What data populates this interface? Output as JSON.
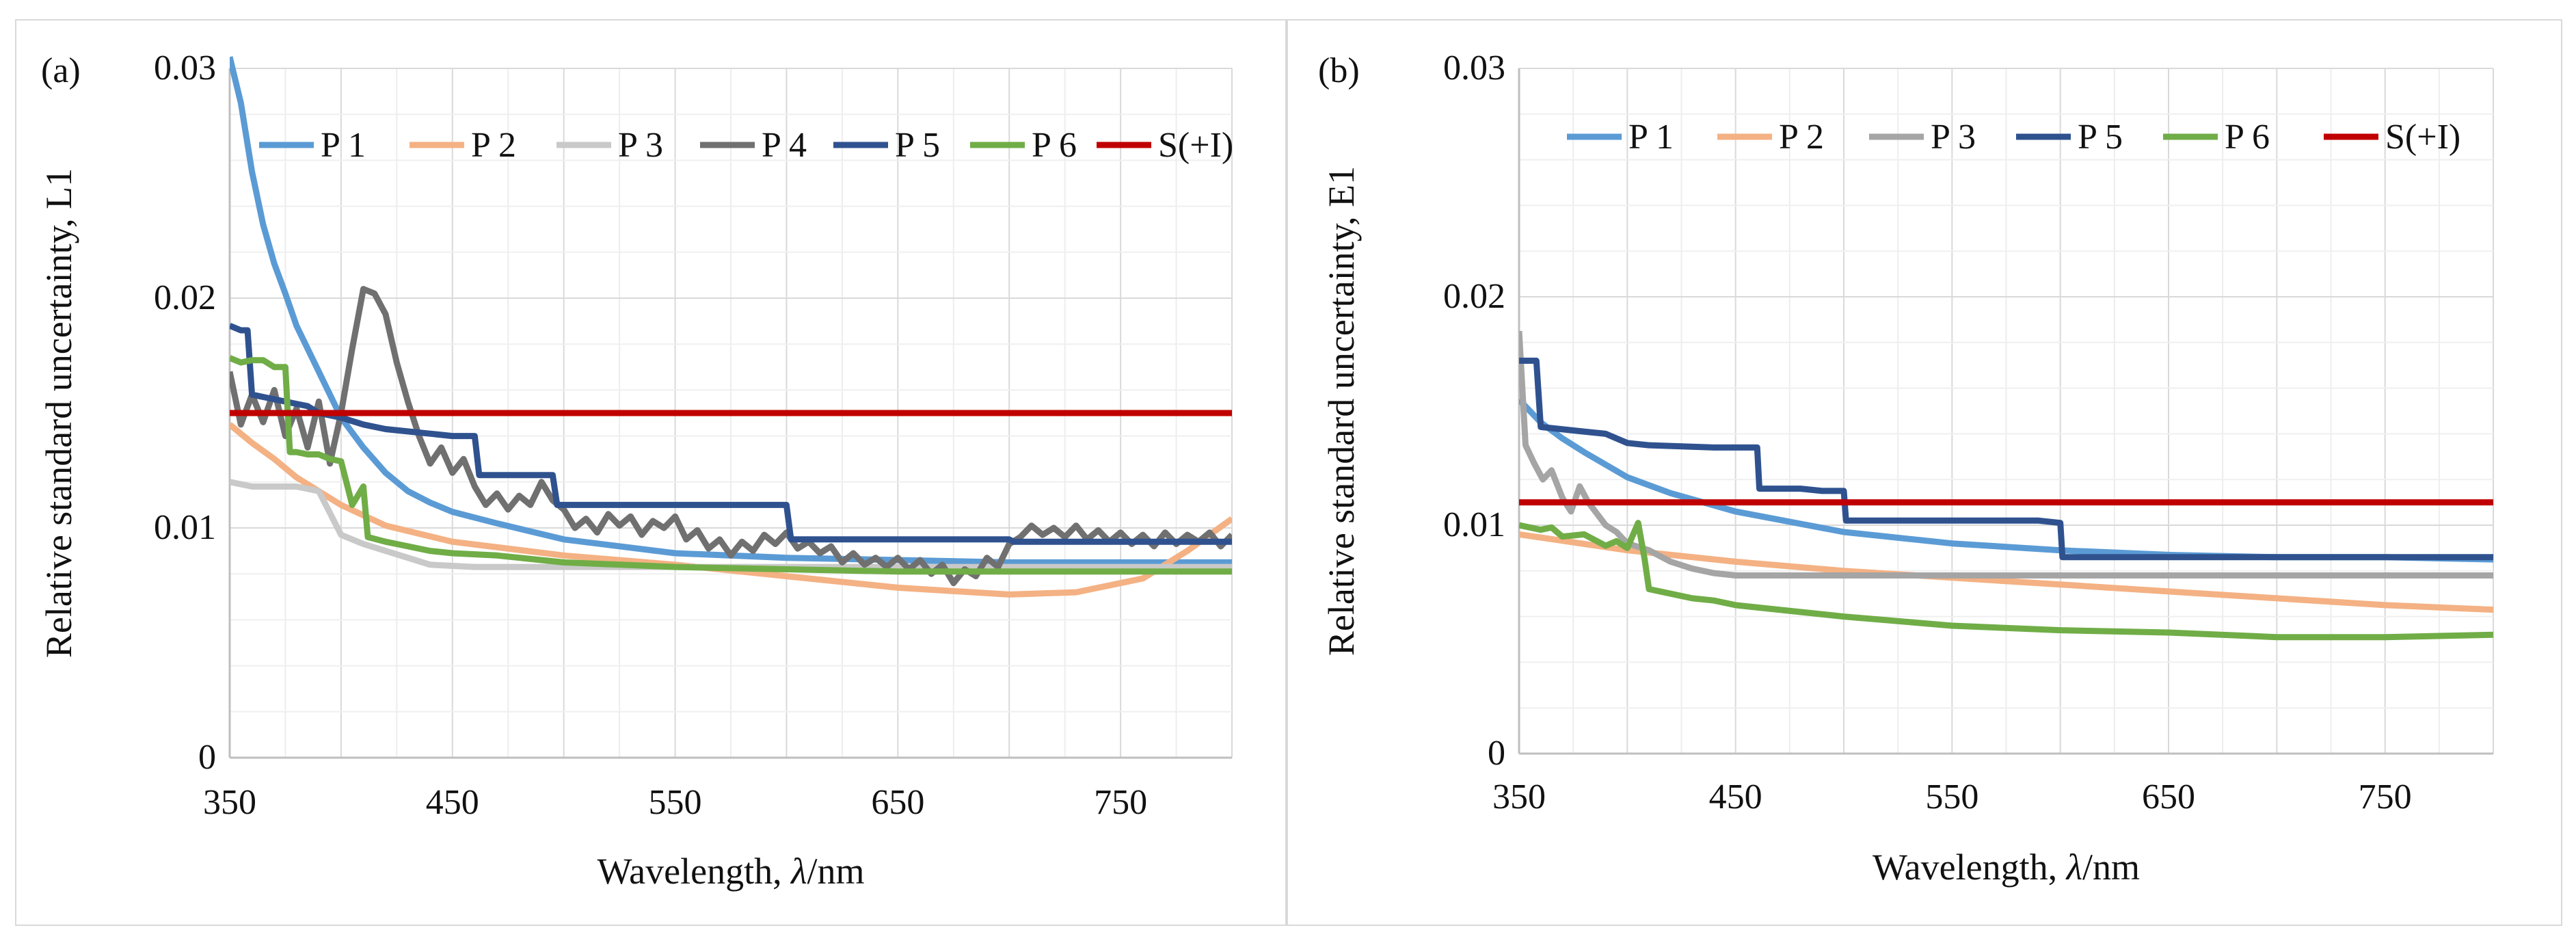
{
  "chart_data": [
    {
      "type": "line",
      "panel_label": "(a)",
      "xlabel_prefix": "Wavelength, ",
      "xlabel_var": "λ",
      "xlabel_suffix": "/nm",
      "ylabel": "Relative standard uncertainty, L1",
      "xlim": [
        350,
        800
      ],
      "ylim": [
        0,
        0.03
      ],
      "xticks": [
        350,
        450,
        550,
        650,
        750
      ],
      "xtick_labels": [
        "350",
        "450",
        "550",
        "650",
        "750"
      ],
      "yticks": [
        0,
        0.01,
        0.02,
        0.03
      ],
      "ytick_labels": [
        "0",
        "0.01",
        "0.02",
        "0.03"
      ],
      "legend_position": "top",
      "series": [
        {
          "name": "P 1",
          "color": "#5b9bd5",
          "x": [
            350,
            355,
            360,
            365,
            370,
            375,
            380,
            390,
            400,
            410,
            420,
            430,
            440,
            450,
            470,
            500,
            550,
            600,
            650,
            700,
            750,
            800
          ],
          "y": [
            0.0305,
            0.0285,
            0.0255,
            0.0232,
            0.0215,
            0.0202,
            0.0188,
            0.0168,
            0.0148,
            0.0135,
            0.0124,
            0.0116,
            0.0111,
            0.0107,
            0.0102,
            0.0095,
            0.0089,
            0.0087,
            0.0086,
            0.0085,
            0.0085,
            0.0085
          ]
        },
        {
          "name": "P 2",
          "color": "#f4b183",
          "x": [
            350,
            360,
            370,
            380,
            400,
            420,
            450,
            500,
            550,
            600,
            650,
            700,
            730,
            760,
            780,
            800
          ],
          "y": [
            0.0145,
            0.0137,
            0.013,
            0.0122,
            0.011,
            0.0101,
            0.0094,
            0.0088,
            0.0084,
            0.0079,
            0.0074,
            0.0071,
            0.0072,
            0.0078,
            0.009,
            0.0104
          ]
        },
        {
          "name": "P 3",
          "color": "#c9c9c9",
          "x": [
            350,
            360,
            380,
            390,
            400,
            410,
            420,
            440,
            460,
            500,
            600,
            700,
            800
          ],
          "y": [
            0.012,
            0.0118,
            0.0118,
            0.0116,
            0.0097,
            0.0093,
            0.009,
            0.0084,
            0.0083,
            0.0083,
            0.0083,
            0.0083,
            0.0083
          ]
        },
        {
          "name": "P 4",
          "color": "#707070",
          "x": [
            350,
            355,
            360,
            365,
            370,
            375,
            380,
            385,
            390,
            395,
            400,
            405,
            410,
            415,
            420,
            425,
            430,
            435,
            440,
            445,
            450,
            455,
            460,
            465,
            470,
            475,
            480,
            485,
            490,
            495,
            500,
            505,
            510,
            515,
            520,
            525,
            530,
            535,
            540,
            545,
            550,
            555,
            560,
            565,
            570,
            575,
            580,
            585,
            590,
            595,
            600,
            605,
            610,
            615,
            620,
            625,
            630,
            635,
            640,
            645,
            650,
            655,
            660,
            665,
            670,
            675,
            680,
            685,
            690,
            695,
            700,
            705,
            710,
            715,
            720,
            725,
            730,
            735,
            740,
            745,
            750,
            755,
            760,
            765,
            770,
            775,
            780,
            785,
            790,
            795,
            800
          ],
          "y": [
            0.0168,
            0.0145,
            0.0158,
            0.0146,
            0.016,
            0.014,
            0.0152,
            0.0135,
            0.0155,
            0.0128,
            0.015,
            0.0178,
            0.0204,
            0.0202,
            0.0193,
            0.0172,
            0.0155,
            0.014,
            0.0128,
            0.0135,
            0.0124,
            0.013,
            0.0118,
            0.011,
            0.0115,
            0.0108,
            0.0114,
            0.011,
            0.012,
            0.0112,
            0.0108,
            0.01,
            0.0104,
            0.0098,
            0.0106,
            0.0101,
            0.0105,
            0.0097,
            0.0103,
            0.01,
            0.0105,
            0.0095,
            0.0099,
            0.0091,
            0.0095,
            0.0088,
            0.0094,
            0.009,
            0.0097,
            0.0093,
            0.0098,
            0.0091,
            0.0094,
            0.0089,
            0.0092,
            0.0085,
            0.0089,
            0.0084,
            0.0087,
            0.0083,
            0.0087,
            0.0082,
            0.0086,
            0.008,
            0.0084,
            0.0076,
            0.0082,
            0.0079,
            0.0087,
            0.0083,
            0.0093,
            0.0096,
            0.0101,
            0.0097,
            0.01,
            0.0096,
            0.0101,
            0.0095,
            0.0099,
            0.0094,
            0.0098,
            0.0093,
            0.0097,
            0.0092,
            0.0098,
            0.0093,
            0.0097,
            0.0094,
            0.0098,
            0.0092,
            0.0097
          ]
        },
        {
          "name": "P 5",
          "color": "#2f528f",
          "x": [
            350,
            355,
            358,
            360,
            380,
            385,
            390,
            400,
            410,
            420,
            430,
            440,
            450,
            460,
            462,
            480,
            490,
            495,
            497,
            500,
            550,
            600,
            602,
            650,
            700,
            702,
            750,
            800
          ],
          "y": [
            0.0188,
            0.0186,
            0.0186,
            0.0158,
            0.0154,
            0.0153,
            0.015,
            0.0148,
            0.0145,
            0.0143,
            0.0142,
            0.0141,
            0.014,
            0.014,
            0.0123,
            0.0123,
            0.0123,
            0.0123,
            0.011,
            0.011,
            0.011,
            0.011,
            0.0095,
            0.0095,
            0.0095,
            0.0094,
            0.0094,
            0.0094
          ]
        },
        {
          "name": "P 6",
          "color": "#70ad47",
          "x": [
            350,
            355,
            360,
            365,
            370,
            375,
            377,
            380,
            385,
            390,
            395,
            400,
            405,
            410,
            412,
            420,
            430,
            440,
            450,
            470,
            500,
            550,
            600,
            650,
            700,
            750,
            800
          ],
          "y": [
            0.0174,
            0.0172,
            0.0173,
            0.0173,
            0.017,
            0.017,
            0.0133,
            0.0133,
            0.0132,
            0.0132,
            0.013,
            0.0129,
            0.011,
            0.0118,
            0.0096,
            0.0094,
            0.0092,
            0.009,
            0.0089,
            0.0088,
            0.0085,
            0.0083,
            0.0082,
            0.0081,
            0.0081,
            0.0081,
            0.0081
          ]
        },
        {
          "name": "S(+I)",
          "color": "#c00000",
          "x": [
            350,
            800
          ],
          "y": [
            0.015,
            0.015
          ]
        }
      ]
    },
    {
      "type": "line",
      "panel_label": "(b)",
      "xlabel_prefix": "Wavelength, ",
      "xlabel_var": "λ",
      "xlabel_suffix": "/nm",
      "ylabel": "Relative standard uncertainty, E1",
      "xlim": [
        350,
        800
      ],
      "ylim": [
        0,
        0.03
      ],
      "xticks": [
        350,
        450,
        550,
        650,
        750
      ],
      "xtick_labels": [
        "350",
        "450",
        "550",
        "650",
        "750"
      ],
      "yticks": [
        0,
        0.01,
        0.02,
        0.03
      ],
      "ytick_labels": [
        "0",
        "0.01",
        "0.02",
        "0.03"
      ],
      "legend_position": "top",
      "series": [
        {
          "name": "P 1",
          "color": "#5b9bd5",
          "x": [
            350,
            360,
            370,
            380,
            400,
            420,
            450,
            500,
            550,
            600,
            650,
            700,
            750,
            800
          ],
          "y": [
            0.0155,
            0.0145,
            0.0138,
            0.0132,
            0.0121,
            0.0114,
            0.0106,
            0.0097,
            0.0092,
            0.0089,
            0.0087,
            0.0086,
            0.0086,
            0.0085
          ]
        },
        {
          "name": "P 2",
          "color": "#f4b183",
          "x": [
            350,
            400,
            450,
            500,
            550,
            600,
            650,
            700,
            750,
            800
          ],
          "y": [
            0.0096,
            0.0089,
            0.0084,
            0.008,
            0.0077,
            0.0074,
            0.0071,
            0.0068,
            0.0065,
            0.0063
          ]
        },
        {
          "name": "P 3",
          "color": "#a5a5a5",
          "x": [
            350,
            353,
            357,
            361,
            365,
            370,
            374,
            378,
            382,
            386,
            390,
            395,
            400,
            410,
            420,
            430,
            440,
            450,
            500,
            600,
            700,
            800
          ],
          "y": [
            0.0185,
            0.0135,
            0.0127,
            0.012,
            0.0124,
            0.0112,
            0.0106,
            0.0117,
            0.011,
            0.0105,
            0.01,
            0.0097,
            0.0092,
            0.0089,
            0.0084,
            0.0081,
            0.0079,
            0.0078,
            0.0078,
            0.0078,
            0.0078,
            0.0078
          ]
        },
        {
          "name": "P 5",
          "color": "#2f528f",
          "x": [
            350,
            358,
            360,
            380,
            390,
            400,
            410,
            440,
            450,
            460,
            461,
            480,
            490,
            500,
            501,
            550,
            590,
            600,
            601,
            650,
            700,
            800
          ],
          "y": [
            0.0172,
            0.0172,
            0.0143,
            0.0141,
            0.014,
            0.0136,
            0.0135,
            0.0134,
            0.0134,
            0.0134,
            0.0116,
            0.0116,
            0.0115,
            0.0115,
            0.0102,
            0.0102,
            0.0102,
            0.0101,
            0.0086,
            0.0086,
            0.0086,
            0.0086
          ]
        },
        {
          "name": "P 6",
          "color": "#70ad47",
          "x": [
            350,
            360,
            365,
            370,
            380,
            390,
            395,
            400,
            405,
            408,
            410,
            420,
            430,
            440,
            450,
            470,
            500,
            550,
            600,
            650,
            700,
            750,
            800
          ],
          "y": [
            0.01,
            0.0098,
            0.0099,
            0.0095,
            0.0096,
            0.0091,
            0.0093,
            0.009,
            0.0101,
            0.0085,
            0.0072,
            0.007,
            0.0068,
            0.0067,
            0.0065,
            0.0063,
            0.006,
            0.0056,
            0.0054,
            0.0053,
            0.0051,
            0.0051,
            0.0052
          ]
        },
        {
          "name": "S(+I)",
          "color": "#c00000",
          "x": [
            350,
            800
          ],
          "y": [
            0.011,
            0.011
          ]
        }
      ]
    }
  ]
}
